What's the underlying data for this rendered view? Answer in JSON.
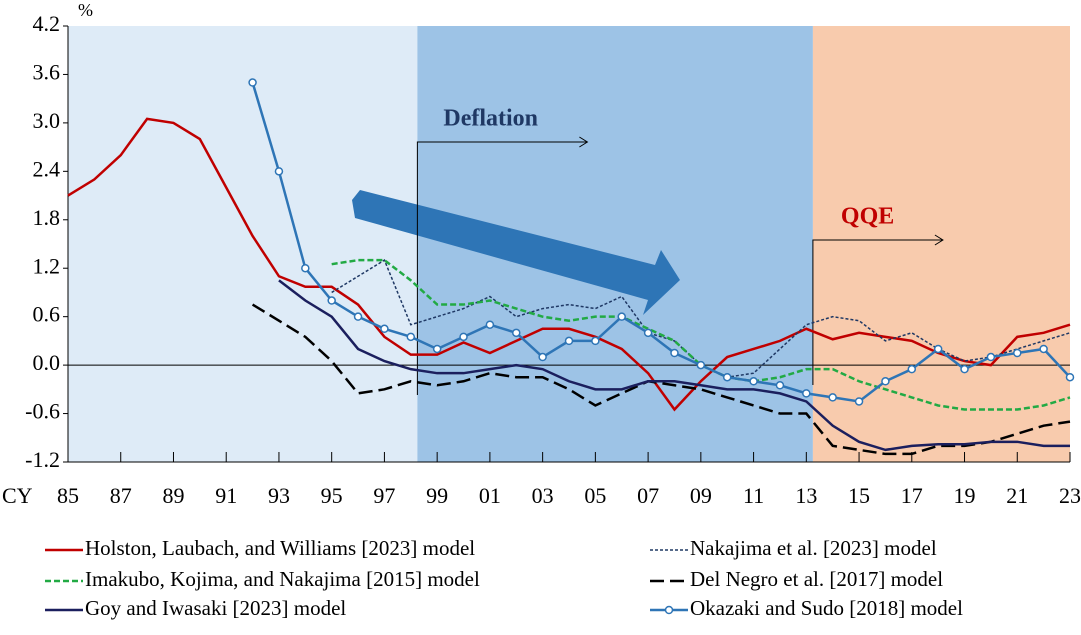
{
  "chart_data": {
    "type": "line",
    "y_unit_label": "%",
    "x_unit_label": "CY",
    "x": [
      1985,
      1986,
      1987,
      1988,
      1989,
      1990,
      1991,
      1992,
      1993,
      1994,
      1995,
      1996,
      1997,
      1998,
      1999,
      2000,
      2001,
      2002,
      2003,
      2004,
      2005,
      2006,
      2007,
      2008,
      2009,
      2010,
      2011,
      2012,
      2013,
      2014,
      2015,
      2016,
      2017,
      2018,
      2019,
      2020,
      2021,
      2022,
      2023
    ],
    "xlim": [
      1985,
      2023
    ],
    "xticks": [
      {
        "value": 1985,
        "label": "85"
      },
      {
        "value": 1987,
        "label": "87"
      },
      {
        "value": 1989,
        "label": "89"
      },
      {
        "value": 1991,
        "label": "91"
      },
      {
        "value": 1993,
        "label": "93"
      },
      {
        "value": 1995,
        "label": "95"
      },
      {
        "value": 1997,
        "label": "97"
      },
      {
        "value": 1999,
        "label": "99"
      },
      {
        "value": 2001,
        "label": "01"
      },
      {
        "value": 2003,
        "label": "03"
      },
      {
        "value": 2005,
        "label": "05"
      },
      {
        "value": 2007,
        "label": "07"
      },
      {
        "value": 2009,
        "label": "09"
      },
      {
        "value": 2011,
        "label": "11"
      },
      {
        "value": 2013,
        "label": "13"
      },
      {
        "value": 2015,
        "label": "15"
      },
      {
        "value": 2017,
        "label": "17"
      },
      {
        "value": 2019,
        "label": "19"
      },
      {
        "value": 2021,
        "label": "21"
      },
      {
        "value": 2023,
        "label": "23"
      }
    ],
    "ylim": [
      -1.2,
      4.2
    ],
    "yticks": [
      -1.2,
      -0.6,
      {
        "value": 0,
        "label": "0.0"
      },
      0.6,
      1.2,
      1.8,
      2.4,
      {
        "value": 3,
        "label": "3.0"
      },
      3.6,
      4.2
    ],
    "shaded_regions": [
      {
        "start": 1985,
        "end": 1998.25,
        "color": "#deebf7"
      },
      {
        "start": 1998.25,
        "end": 2013.25,
        "color": "#9dc3e6"
      },
      {
        "start": 2013.25,
        "end": 2023,
        "color": "#f8cbad"
      }
    ],
    "annotations": [
      {
        "text": "Deflation",
        "x": 1998.25,
        "color": "#1f3864"
      },
      {
        "text": "QQE",
        "x": 2013.25,
        "color": "#c00000"
      }
    ],
    "series": [
      {
        "name": "Holston, Laubach, and Williams [2023] model",
        "color": "#c00000",
        "style": "solid",
        "values": [
          2.1,
          2.3,
          2.6,
          3.05,
          3.0,
          2.8,
          2.2,
          1.6,
          1.1,
          0.97,
          0.97,
          0.75,
          0.35,
          0.13,
          0.13,
          0.28,
          0.15,
          0.3,
          0.45,
          0.45,
          0.35,
          0.2,
          -0.1,
          -0.55,
          -0.2,
          0.1,
          0.2,
          0.3,
          0.45,
          0.32,
          0.4,
          0.35,
          0.3,
          0.15,
          0.05,
          0.0,
          0.35,
          0.4,
          0.5
        ]
      },
      {
        "name": "Nakajima et al. [2023] model",
        "color": "#1f3864",
        "style": "dotted",
        "values": [
          null,
          null,
          null,
          null,
          null,
          null,
          null,
          null,
          null,
          null,
          0.9,
          1.1,
          1.3,
          0.5,
          0.6,
          0.7,
          0.85,
          0.6,
          0.7,
          0.75,
          0.7,
          0.85,
          0.4,
          0.3,
          0.0,
          -0.15,
          -0.1,
          0.2,
          0.5,
          0.6,
          0.55,
          0.3,
          0.4,
          0.2,
          0.05,
          0.1,
          0.2,
          0.3,
          0.4
        ]
      },
      {
        "name": "Imakubo, Kojima, and Nakajima [2015] model",
        "color": "#22aa44",
        "style": "dashed",
        "values": [
          null,
          null,
          null,
          null,
          null,
          null,
          null,
          null,
          null,
          null,
          1.25,
          1.3,
          1.3,
          1.05,
          0.75,
          0.75,
          0.8,
          0.7,
          0.6,
          0.55,
          0.6,
          0.6,
          0.45,
          0.3,
          0.0,
          -0.15,
          -0.2,
          -0.15,
          -0.05,
          -0.05,
          -0.2,
          -0.3,
          -0.4,
          -0.5,
          -0.55,
          -0.55,
          -0.55,
          -0.5,
          -0.4
        ]
      },
      {
        "name": "Del Negro et al. [2017] model",
        "color": "#000000",
        "style": "longdash",
        "values": [
          null,
          null,
          null,
          null,
          null,
          null,
          null,
          0.75,
          0.55,
          0.35,
          0.05,
          -0.35,
          -0.3,
          -0.2,
          -0.25,
          -0.2,
          -0.1,
          -0.15,
          -0.15,
          -0.3,
          -0.5,
          -0.35,
          -0.2,
          -0.25,
          -0.3,
          -0.4,
          -0.5,
          -0.6,
          -0.6,
          -1.0,
          -1.05,
          -1.1,
          -1.1,
          -1.0,
          -1.0,
          -0.95,
          -0.85,
          -0.75,
          -0.7
        ]
      },
      {
        "name": "Goy and Iwasaki [2023] model",
        "color": "#1b1f5e",
        "style": "solid",
        "values": [
          null,
          null,
          null,
          null,
          null,
          null,
          null,
          null,
          1.05,
          0.8,
          0.6,
          0.2,
          0.05,
          -0.05,
          -0.1,
          -0.1,
          -0.05,
          0.0,
          -0.05,
          -0.2,
          -0.3,
          -0.3,
          -0.2,
          -0.2,
          -0.25,
          -0.3,
          -0.3,
          -0.35,
          -0.45,
          -0.75,
          -0.95,
          -1.05,
          -1.0,
          -0.98,
          -0.98,
          -0.95,
          -0.95,
          -1.0,
          -1.0
        ]
      },
      {
        "name": "Okazaki and Sudo [2018] model",
        "color": "#2e75b6",
        "style": "solid",
        "markers": true,
        "values": [
          null,
          null,
          null,
          null,
          null,
          null,
          null,
          3.5,
          2.4,
          1.2,
          0.8,
          0.6,
          0.45,
          0.35,
          0.2,
          0.35,
          0.5,
          0.4,
          0.1,
          0.3,
          0.3,
          0.6,
          0.4,
          0.15,
          0.0,
          -0.15,
          -0.2,
          -0.25,
          -0.35,
          -0.4,
          -0.45,
          -0.2,
          -0.05,
          0.2,
          -0.05,
          0.1,
          0.15,
          0.2,
          -0.15
        ]
      }
    ]
  }
}
